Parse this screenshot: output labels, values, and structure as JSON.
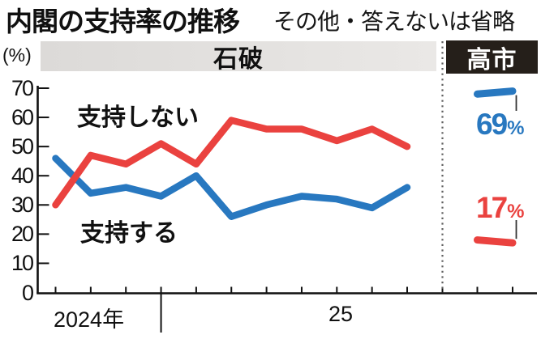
{
  "title": "内閣の支持率の推移",
  "subtitle": "その他・答えないは省略",
  "unit_label": "(%)",
  "period_bands": {
    "ishiba": "石破",
    "takaichi": "高市"
  },
  "series_labels": {
    "disapprove": "支持しない",
    "approve": "支持する"
  },
  "x_axis": {
    "year_labels": [
      "2024年",
      "25"
    ]
  },
  "y_axis": {
    "ticks": [
      70,
      60,
      50,
      40,
      30,
      20,
      10,
      0
    ]
  },
  "takaichi_labels": {
    "approve": {
      "value": "69",
      "unit": "%"
    },
    "disapprove": {
      "value": "17",
      "unit": "%"
    }
  },
  "colors": {
    "approve": "#2878c0",
    "disapprove": "#ea423f",
    "axis": "#111111",
    "band_gray": "#e3e1df",
    "takaichi_box": "#251f1a",
    "separator": "#5f5f5f"
  },
  "chart_data": {
    "type": "line",
    "title": "内閣の支持率の推移",
    "note": "その他・答えないは省略",
    "ylabel": "(%)",
    "ylim": [
      0,
      70
    ],
    "y_ticks": [
      0,
      10,
      20,
      30,
      40,
      50,
      60,
      70
    ],
    "grid": false,
    "x_segments": [
      {
        "name": "石破",
        "x_year_labels": [
          "2024年",
          "25"
        ],
        "n_points": 11,
        "series": [
          {
            "name": "支持する",
            "color": "#2878c0",
            "values": [
              46,
              34,
              36,
              33,
              40,
              26,
              30,
              33,
              32,
              29,
              36
            ]
          },
          {
            "name": "支持しない",
            "color": "#ea423f",
            "values": [
              30,
              47,
              44,
              51,
              44,
              59,
              56,
              56,
              52,
              56,
              50
            ]
          }
        ]
      },
      {
        "name": "高市",
        "n_points": 2,
        "series": [
          {
            "name": "支持する",
            "color": "#2878c0",
            "values": [
              68,
              69
            ],
            "latest_label": "69%"
          },
          {
            "name": "支持しない",
            "color": "#ea423f",
            "values": [
              18,
              17
            ],
            "latest_label": "17%"
          }
        ]
      }
    ]
  }
}
